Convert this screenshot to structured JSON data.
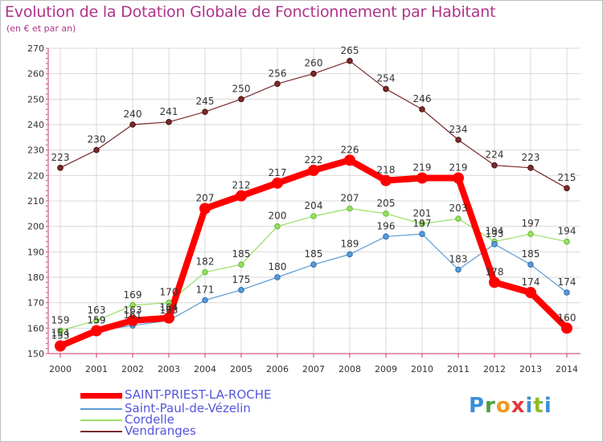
{
  "title": "Evolution de la Dotation Globale de Fonctionnement par Habitant",
  "subtitle": "(en € et par an)",
  "logo": "Proxiti",
  "colors": {
    "title": "#b0338a",
    "axis": "#cc3366",
    "grid": "#d9d9d9",
    "saint_priest": "#ff0000",
    "saint_paul": "#5b9bd5",
    "cordelle": "#99dd66",
    "vendranges": "#7a2a2a"
  },
  "chart_data": {
    "type": "line",
    "title": "Evolution de la Dotation Globale de Fonctionnement par Habitant",
    "ylabel": "(en € et par an)",
    "xlabel": "",
    "ylim": [
      150,
      270
    ],
    "yticks": [
      150,
      160,
      170,
      180,
      190,
      200,
      210,
      220,
      230,
      240,
      250,
      260,
      270
    ],
    "categories": [
      "2000",
      "2001",
      "2002",
      "2003",
      "2004",
      "2005",
      "2006",
      "2007",
      "2008",
      "2009",
      "2010",
      "2011",
      "2012",
      "2013",
      "2014"
    ],
    "series": [
      {
        "name": "SAINT-PRIEST-LA-ROCHE",
        "key": "saint_priest",
        "values": [
          153,
          159,
          163,
          164,
          207,
          212,
          217,
          222,
          226,
          218,
          219,
          219,
          178,
          174,
          160
        ]
      },
      {
        "name": "Saint-Paul-de-Vézelin",
        "key": "saint_paul",
        "values": [
          154,
          159,
          161,
          163,
          171,
          175,
          180,
          185,
          189,
          196,
          197,
          183,
          193,
          185,
          174
        ]
      },
      {
        "name": "Cordelle",
        "key": "cordelle",
        "values": [
          159,
          163,
          169,
          170,
          182,
          185,
          200,
          204,
          207,
          205,
          201,
          203,
          194,
          197,
          194
        ]
      },
      {
        "name": "Vendranges",
        "key": "vendranges",
        "values": [
          223,
          230,
          240,
          241,
          245,
          250,
          256,
          260,
          265,
          254,
          246,
          234,
          224,
          223,
          215
        ]
      }
    ]
  }
}
